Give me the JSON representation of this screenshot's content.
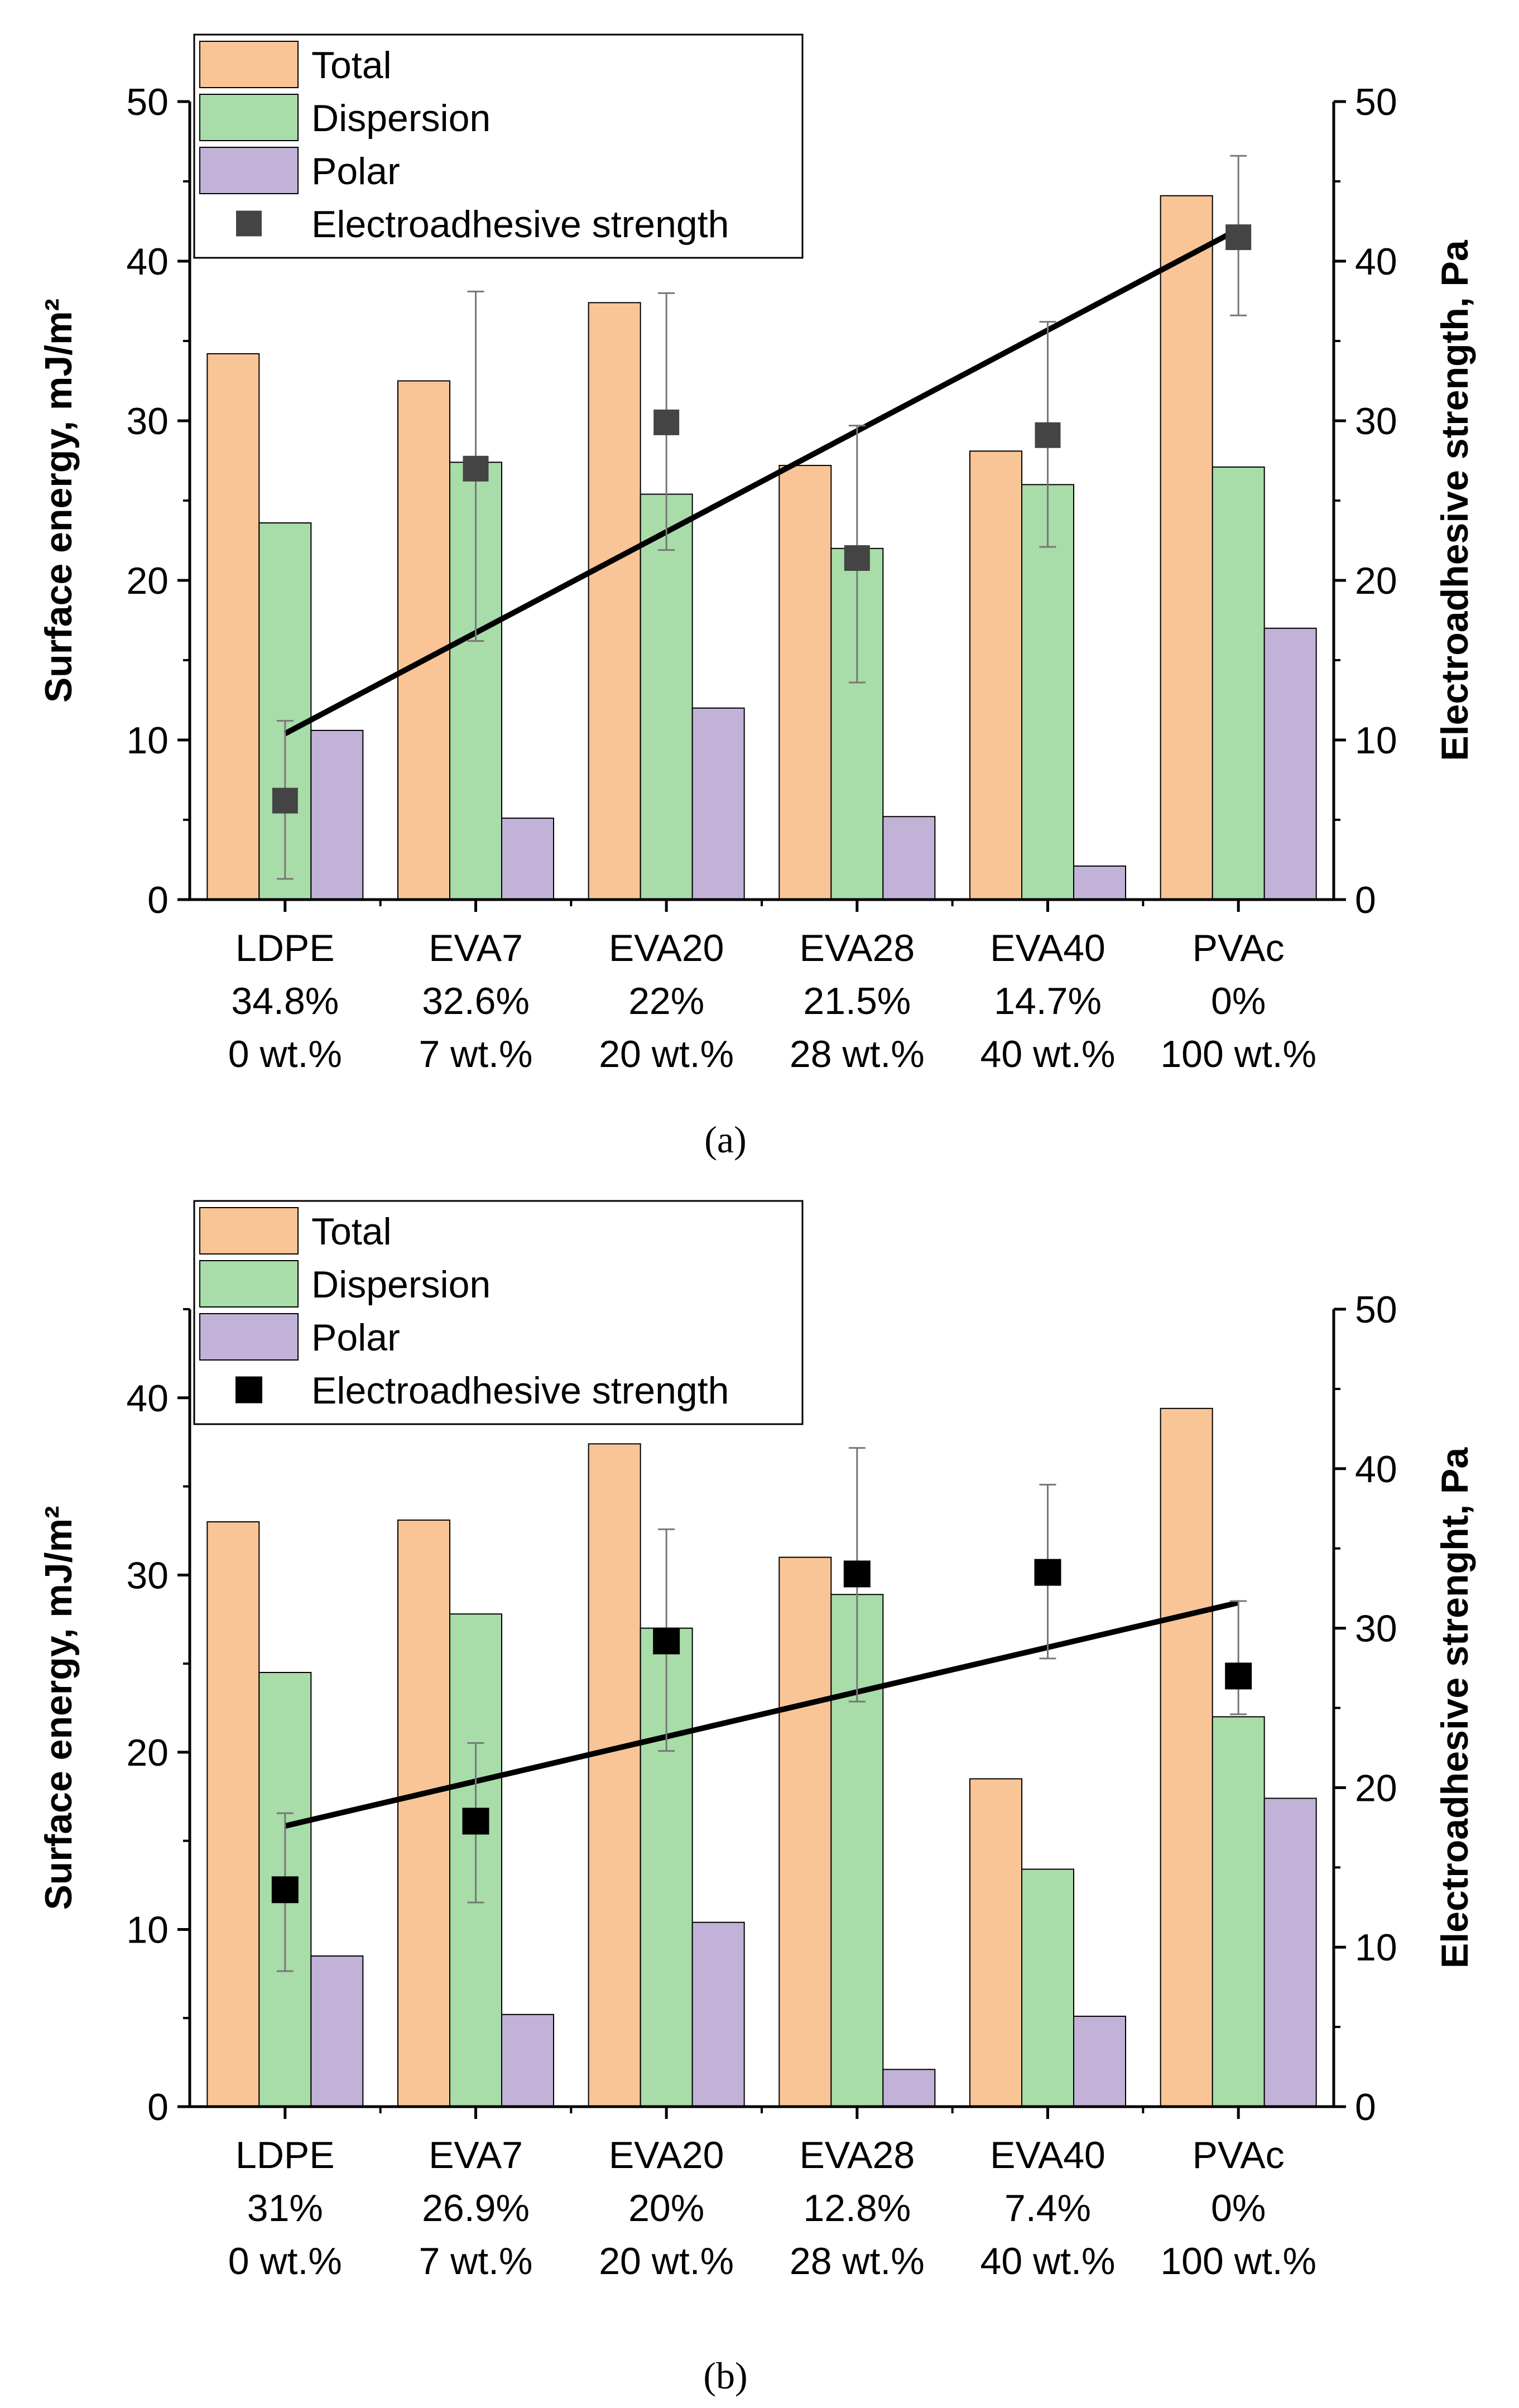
{
  "colors": {
    "total": "#FAC596",
    "dispersion": "#A8DCA8",
    "polar": "#C3B2D8",
    "marker_a": "#444444",
    "marker_b": "#000000",
    "errorbar": "#777777",
    "trendline": "#000000"
  },
  "legend_labels": [
    "Total",
    "Dispersion",
    "Polar",
    "Electroadhesive strength"
  ],
  "chart_data": [
    {
      "type": "bar",
      "caption": "(a)",
      "categories": [
        "LDPE",
        "EVA7",
        "EVA20",
        "EVA28",
        "EVA40",
        "PVAc"
      ],
      "sublabels_pct": [
        "34.8%",
        "32.6%",
        "22%",
        "21.5%",
        "14.7%",
        "0%"
      ],
      "sublabels_wt": [
        "0 wt.%",
        "7 wt.%",
        "20 wt.%",
        "28 wt.%",
        "40 wt.%",
        "100 wt.%"
      ],
      "series": [
        {
          "name": "Total",
          "values": [
            34.2,
            32.5,
            37.4,
            27.2,
            28.1,
            44.1
          ]
        },
        {
          "name": "Dispersion",
          "values": [
            23.6,
            27.4,
            25.4,
            22.0,
            26.0,
            27.1
          ]
        },
        {
          "name": "Polar",
          "values": [
            10.6,
            5.1,
            12.0,
            5.2,
            2.1,
            17.0
          ]
        }
      ],
      "scatter": {
        "name": "Electroadhesive strength",
        "values": [
          6.2,
          27.0,
          29.9,
          21.4,
          29.1,
          41.5
        ],
        "err_low": [
          1.3,
          16.2,
          21.9,
          13.6,
          22.1,
          36.6
        ],
        "err_high": [
          11.2,
          38.1,
          38.0,
          29.7,
          36.2,
          46.6
        ]
      },
      "trendline": {
        "from": 10.4,
        "to": 42.0
      },
      "ylabel": "Surface energy, mJ/m²",
      "y2label": "Electroadhesive strength, Pa",
      "ylim": [
        0,
        50
      ],
      "y2lim": [
        0,
        50
      ],
      "yticks": [
        0,
        10,
        20,
        30,
        40,
        50
      ],
      "y2ticks": [
        0,
        10,
        20,
        30,
        40,
        50
      ]
    },
    {
      "type": "bar",
      "caption": "(b)",
      "categories": [
        "LDPE",
        "EVA7",
        "EVA20",
        "EVA28",
        "EVA40",
        "PVAc"
      ],
      "sublabels_pct": [
        "31%",
        "26.9%",
        "20%",
        "12.8%",
        "7.4%",
        "0%"
      ],
      "sublabels_wt": [
        "0 wt.%",
        "7 wt.%",
        "20 wt.%",
        "28 wt.%",
        "40 wt.%",
        "100 wt.%"
      ],
      "series": [
        {
          "name": "Total",
          "values": [
            33.0,
            33.1,
            37.4,
            31.0,
            18.5,
            39.4
          ]
        },
        {
          "name": "Dispersion",
          "values": [
            24.5,
            27.8,
            27.0,
            28.9,
            13.4,
            22.0
          ]
        },
        {
          "name": "Polar",
          "values": [
            8.5,
            5.2,
            10.4,
            2.1,
            5.1,
            17.4
          ]
        }
      ],
      "scatter": {
        "name": "Electroadhesive strength",
        "values": [
          13.6,
          17.9,
          29.2,
          33.4,
          33.5,
          27.0
        ],
        "err_low": [
          8.5,
          12.8,
          22.3,
          25.4,
          28.1,
          24.6
        ],
        "err_high": [
          18.4,
          22.8,
          36.2,
          41.3,
          39.0,
          31.7
        ]
      },
      "trendline": {
        "from": 17.6,
        "to": 31.6
      },
      "ylabel": "Surface energy, mJ/m²",
      "y2label": "Electroadhesive strenght, Pa",
      "ylim": [
        0,
        45
      ],
      "y2lim": [
        0,
        50
      ],
      "yticks": [
        0,
        10,
        20,
        30,
        40
      ],
      "y2ticks": [
        0,
        10,
        20,
        30,
        40,
        50
      ]
    }
  ]
}
